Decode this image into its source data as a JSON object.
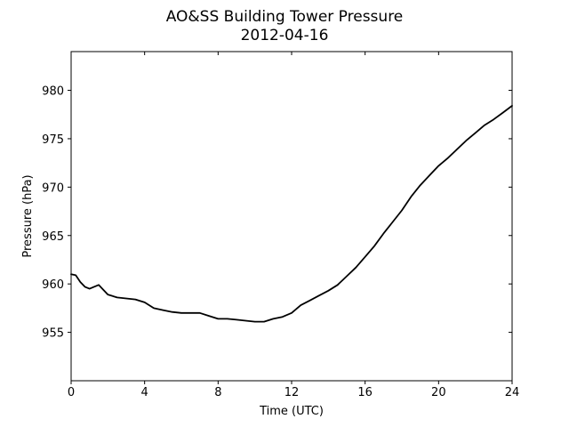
{
  "chart_data": {
    "type": "line",
    "title": "AO&SS Building Tower Pressure",
    "subtitle": "2012-04-16",
    "xlabel": "Time (UTC)",
    "ylabel": "Pressure (hPa)",
    "xlim": [
      0,
      24
    ],
    "ylim": [
      950,
      984
    ],
    "x_ticks": [
      0,
      4,
      8,
      12,
      16,
      20,
      24
    ],
    "y_ticks": [
      955,
      960,
      965,
      970,
      975,
      980
    ],
    "grid": false,
    "legend": "none",
    "colors": {
      "line": "#000000",
      "background": "#ffffff"
    },
    "series": [
      {
        "x": [
          0.0,
          0.25,
          0.5,
          0.75,
          1.0,
          1.25,
          1.5,
          1.75,
          2.0,
          2.5,
          3.0,
          3.5,
          4.0,
          4.5,
          5.0,
          5.5,
          6.0,
          6.5,
          7.0,
          7.5,
          8.0,
          8.5,
          9.0,
          9.5,
          10.0,
          10.5,
          11.0,
          11.5,
          12.0,
          12.5,
          13.0,
          13.5,
          14.0,
          14.5,
          15.0,
          15.5,
          16.0,
          16.5,
          17.0,
          17.5,
          18.0,
          18.5,
          19.0,
          19.5,
          20.0,
          20.5,
          21.0,
          21.5,
          22.0,
          22.5,
          23.0,
          23.5,
          24.0
        ],
        "y": [
          961.0,
          960.9,
          960.2,
          959.7,
          959.5,
          959.7,
          959.9,
          959.4,
          958.9,
          958.6,
          958.5,
          958.4,
          958.1,
          957.5,
          957.3,
          957.1,
          957.0,
          957.0,
          957.0,
          956.7,
          956.4,
          956.4,
          956.3,
          956.2,
          956.1,
          956.1,
          956.4,
          956.6,
          957.0,
          957.8,
          958.3,
          958.8,
          959.3,
          959.9,
          960.8,
          961.7,
          962.8,
          963.9,
          965.2,
          966.4,
          967.6,
          969.0,
          970.2,
          971.2,
          972.2,
          973.0,
          973.9,
          974.8,
          975.6,
          976.4,
          977.0,
          977.7,
          978.4
        ]
      }
    ]
  }
}
